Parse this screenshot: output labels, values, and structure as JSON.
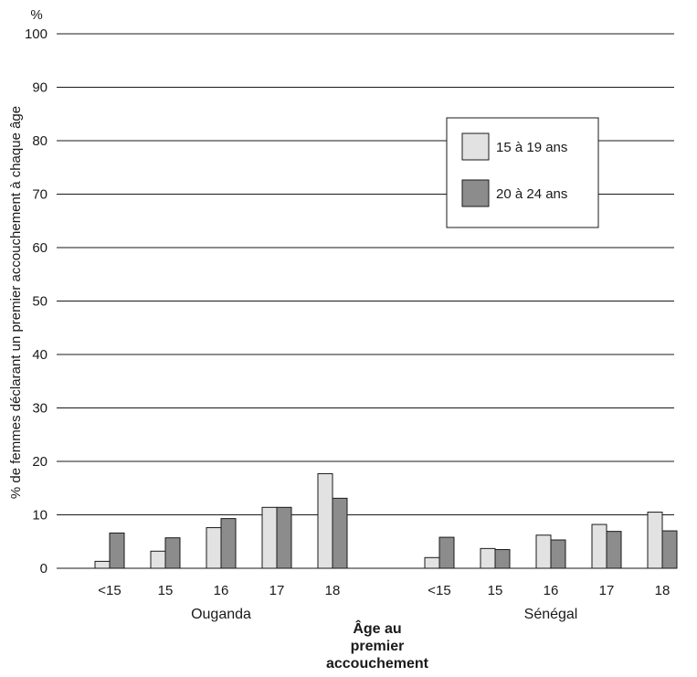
{
  "chart_data": {
    "type": "bar",
    "yunit": "%",
    "ylabel": "% de femmes déclarant un premier accouchement à chaque âge",
    "xlabel": "Âge au premier accouchement",
    "ylim": [
      0,
      100
    ],
    "yticks": [
      0,
      10,
      20,
      30,
      40,
      50,
      60,
      70,
      80,
      90,
      100
    ],
    "grid": true,
    "legend_position": "top-right",
    "series": [
      {
        "name": "15 à 19 ans",
        "color": "#e2e2e2"
      },
      {
        "name": "20 à 24 ans",
        "color": "#8c8c8c"
      }
    ],
    "groups": [
      {
        "name": "Ouganda",
        "categories": [
          "<15",
          "15",
          "16",
          "17",
          "18"
        ],
        "values": [
          [
            1.3,
            6.6
          ],
          [
            3.2,
            5.7
          ],
          [
            7.6,
            9.3
          ],
          [
            11.4,
            11.4
          ],
          [
            17.7,
            13.1
          ]
        ]
      },
      {
        "name": "Sénégal",
        "categories": [
          "<15",
          "15",
          "16",
          "17",
          "18"
        ],
        "values": [
          [
            2.0,
            5.8
          ],
          [
            3.7,
            3.5
          ],
          [
            6.2,
            5.3
          ],
          [
            8.2,
            6.9
          ],
          [
            10.5,
            7.0
          ]
        ]
      }
    ]
  }
}
